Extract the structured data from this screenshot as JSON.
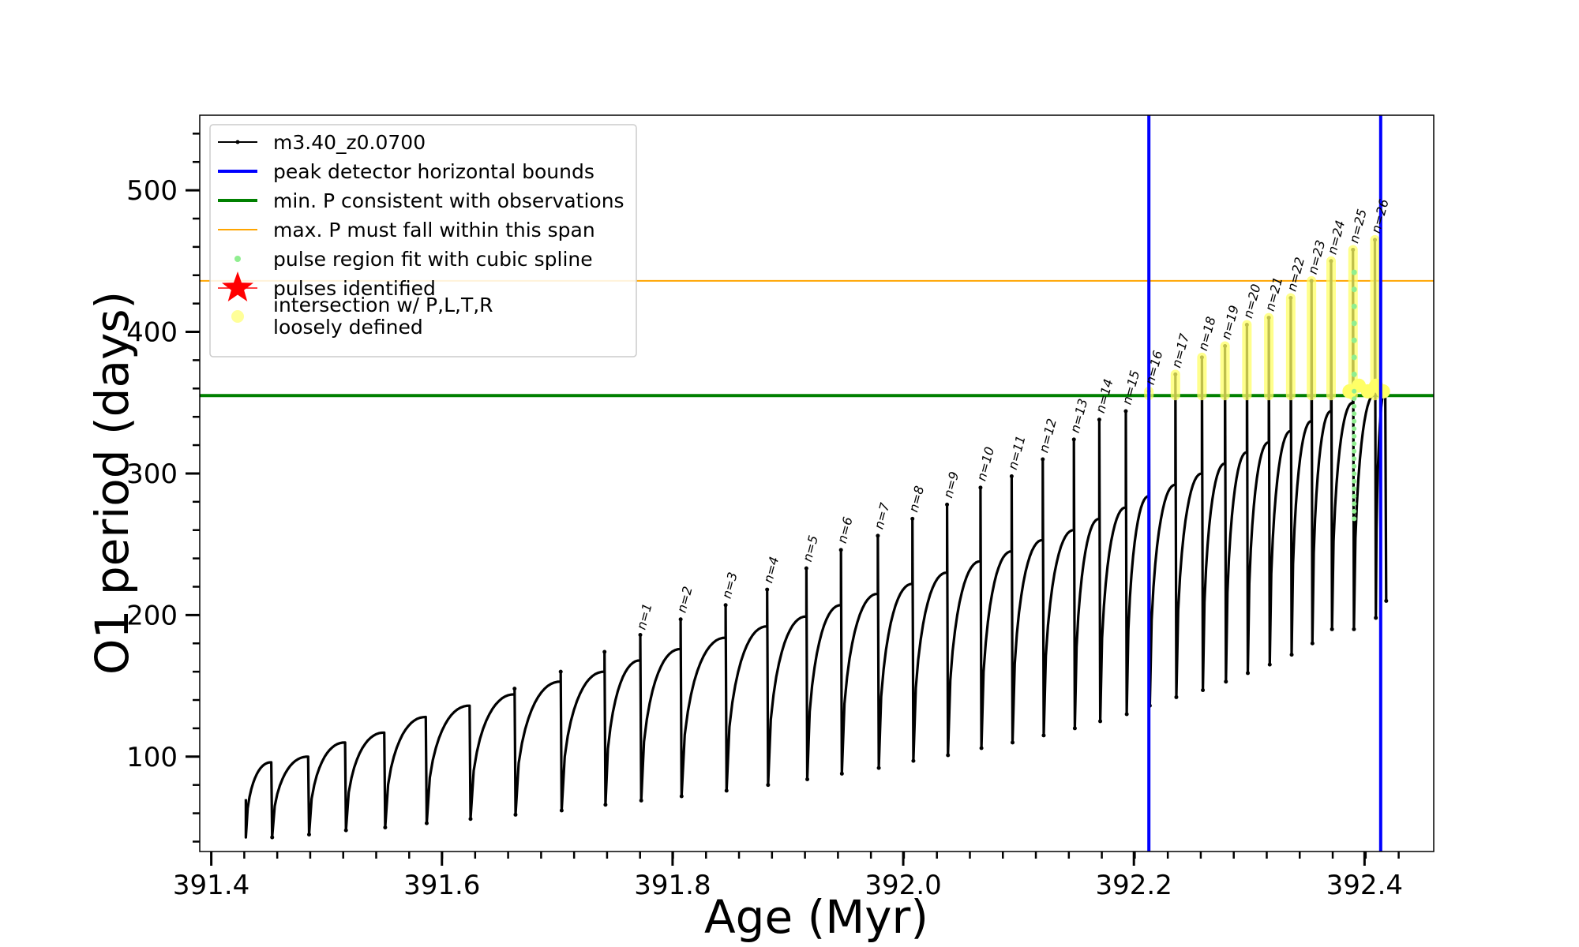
{
  "chart_data": {
    "type": "line",
    "title": "",
    "xlabel": "Age (Myr)",
    "ylabel": "O1 period (days)",
    "xlim": [
      391.39,
      392.46
    ],
    "ylim": [
      33,
      553
    ],
    "x_ticks": [
      "391.4",
      "391.6",
      "391.8",
      "392.0",
      "392.2",
      "392.4"
    ],
    "y_ticks": [
      "100",
      "200",
      "300",
      "400",
      "500"
    ],
    "grid": false,
    "legend_position": "top-left",
    "legend": [
      {
        "label": "m3.40_z0.0700",
        "kind": "line-marker",
        "color": "#000000"
      },
      {
        "label": "peak detector horizontal bounds",
        "kind": "line",
        "color": "#0000ff"
      },
      {
        "label": "min. P consistent with observations",
        "kind": "line",
        "color": "#008000"
      },
      {
        "label": "max. P must fall within this span",
        "kind": "line",
        "color": "#ffa500"
      },
      {
        "label": "pulse region fit with cubic spline",
        "kind": "dot",
        "color": "#90ee90"
      },
      {
        "label": "pulses identified",
        "kind": "star",
        "color": "#ff0000"
      },
      {
        "label": "intersection w/ P,L,T,R",
        "label2": "loosely defined",
        "kind": "big-dot",
        "color": "#ffff99"
      }
    ],
    "vertical_lines": [
      392.213,
      392.414
    ],
    "hline_min_P": 355,
    "hline_max_P": 436,
    "colors": {
      "track": "#000000",
      "bounds": "#0000ff",
      "minP": "#008000",
      "maxP": "#ffa500",
      "spline": "#90ee90",
      "intersect": "#ffff66"
    },
    "series": [
      {
        "name": "m3.40_z0.0700",
        "pulses": [
          {
            "x": 391.452,
            "trough": 43,
            "rise": 96,
            "spike": null
          },
          {
            "x": 391.484,
            "trough": 45,
            "rise": 100,
            "spike": null
          },
          {
            "x": 391.516,
            "trough": 48,
            "rise": 110,
            "spike": null
          },
          {
            "x": 391.55,
            "trough": 50,
            "rise": 117,
            "spike": null
          },
          {
            "x": 391.586,
            "trough": 53,
            "rise": 128,
            "spike": null
          },
          {
            "x": 391.624,
            "trough": 56,
            "rise": 136,
            "spike": null
          },
          {
            "x": 391.663,
            "trough": 59,
            "rise": 144,
            "spike": 148
          },
          {
            "x": 391.703,
            "trough": 62,
            "rise": 153,
            "spike": 160
          },
          {
            "x": 391.741,
            "trough": 66,
            "rise": 160,
            "spike": 174
          },
          {
            "x": 391.772,
            "trough": 69,
            "rise": 168,
            "spike": 186
          },
          {
            "x": 391.807,
            "trough": 72,
            "rise": 176,
            "spike": 197
          },
          {
            "x": 391.846,
            "trough": 76,
            "rise": 184,
            "spike": 207
          },
          {
            "x": 391.882,
            "trough": 80,
            "rise": 192,
            "spike": 218
          },
          {
            "x": 391.916,
            "trough": 84,
            "rise": 199,
            "spike": 233
          },
          {
            "x": 391.946,
            "trough": 88,
            "rise": 207,
            "spike": 246
          },
          {
            "x": 391.978,
            "trough": 92,
            "rise": 215,
            "spike": 256
          },
          {
            "x": 392.008,
            "trough": 97,
            "rise": 222,
            "spike": 268
          },
          {
            "x": 392.038,
            "trough": 101,
            "rise": 230,
            "spike": 278
          },
          {
            "x": 392.067,
            "trough": 106,
            "rise": 238,
            "spike": 290
          },
          {
            "x": 392.094,
            "trough": 110,
            "rise": 245,
            "spike": 298
          },
          {
            "x": 392.121,
            "trough": 115,
            "rise": 253,
            "spike": 310
          },
          {
            "x": 392.148,
            "trough": 120,
            "rise": 260,
            "spike": 324
          },
          {
            "x": 392.17,
            "trough": 125,
            "rise": 268,
            "spike": 338
          },
          {
            "x": 392.193,
            "trough": 130,
            "rise": 276,
            "spike": 344
          },
          {
            "x": 392.213,
            "trough": 136,
            "rise": 284,
            "spike": 358
          },
          {
            "x": 392.236,
            "trough": 142,
            "rise": 292,
            "spike": 370
          },
          {
            "x": 392.259,
            "trough": 147,
            "rise": 300,
            "spike": 382
          },
          {
            "x": 392.279,
            "trough": 153,
            "rise": 307,
            "spike": 390
          },
          {
            "x": 392.298,
            "trough": 159,
            "rise": 315,
            "spike": 405
          },
          {
            "x": 392.317,
            "trough": 165,
            "rise": 322,
            "spike": 410
          },
          {
            "x": 392.336,
            "trough": 172,
            "rise": 330,
            "spike": 424
          },
          {
            "x": 392.354,
            "trough": 180,
            "rise": 337,
            "spike": 436
          },
          {
            "x": 392.371,
            "trough": 190,
            "rise": 344,
            "spike": 450
          },
          {
            "x": 392.39,
            "trough": 190,
            "rise": 350,
            "spike": 458
          },
          {
            "x": 392.409,
            "trough": 198,
            "rise": 356,
            "spike": 465
          },
          {
            "x": 392.418,
            "trough": 210,
            "rise": 360,
            "spike": null
          }
        ]
      }
    ],
    "pulse_labels": [
      {
        "n": "n=1",
        "x": 391.772,
        "y": 188
      },
      {
        "n": "n=2",
        "x": 391.807,
        "y": 200
      },
      {
        "n": "n=3",
        "x": 391.846,
        "y": 210
      },
      {
        "n": "n=4",
        "x": 391.882,
        "y": 221
      },
      {
        "n": "n=5",
        "x": 391.916,
        "y": 236
      },
      {
        "n": "n=6",
        "x": 391.946,
        "y": 249
      },
      {
        "n": "n=7",
        "x": 391.978,
        "y": 259
      },
      {
        "n": "n=8",
        "x": 392.008,
        "y": 271
      },
      {
        "n": "n=9",
        "x": 392.038,
        "y": 281
      },
      {
        "n": "n=10",
        "x": 392.067,
        "y": 293
      },
      {
        "n": "n=11",
        "x": 392.094,
        "y": 301
      },
      {
        "n": "n=12",
        "x": 392.121,
        "y": 313
      },
      {
        "n": "n=13",
        "x": 392.148,
        "y": 327
      },
      {
        "n": "n=14",
        "x": 392.17,
        "y": 341
      },
      {
        "n": "n=15",
        "x": 392.193,
        "y": 347
      },
      {
        "n": "n=16",
        "x": 392.213,
        "y": 361
      },
      {
        "n": "n=17",
        "x": 392.236,
        "y": 373
      },
      {
        "n": "n=18",
        "x": 392.259,
        "y": 385
      },
      {
        "n": "n=19",
        "x": 392.279,
        "y": 393
      },
      {
        "n": "n=20",
        "x": 392.298,
        "y": 408
      },
      {
        "n": "n=21",
        "x": 392.317,
        "y": 413
      },
      {
        "n": "n=22",
        "x": 392.336,
        "y": 427
      },
      {
        "n": "n=23",
        "x": 392.354,
        "y": 439
      },
      {
        "n": "n=24",
        "x": 392.371,
        "y": 453
      },
      {
        "n": "n=25",
        "x": 392.39,
        "y": 461
      },
      {
        "n": "n=26",
        "x": 392.409,
        "y": 468
      }
    ]
  }
}
